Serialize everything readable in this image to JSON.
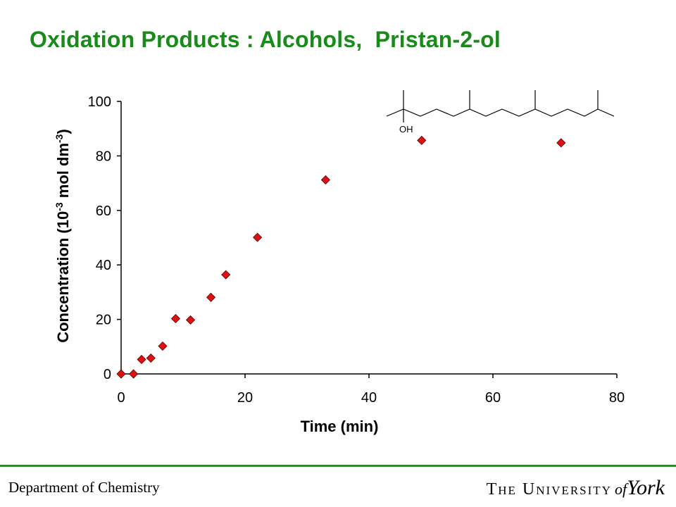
{
  "slide": {
    "title": "Oxidation Products : Alcohols,  Pristan-2-ol"
  },
  "chart_data": {
    "type": "scatter",
    "title": "",
    "xlabel": "Time (min)",
    "ylabel_prefix": "Concentration (10",
    "ylabel_exp1": "-3",
    "ylabel_mid": " mol dm",
    "ylabel_exp2": "-3",
    "ylabel_suffix": ")",
    "xlim": [
      0,
      80
    ],
    "ylim": [
      0,
      100
    ],
    "xticks": [
      0,
      20,
      40,
      60,
      80
    ],
    "yticks": [
      0,
      20,
      40,
      60,
      80,
      100
    ],
    "grid": false,
    "marker_color": "#dd1111",
    "series": [
      {
        "x": [
          0,
          2,
          3.3,
          4.8,
          6.7,
          8.8,
          11.2,
          14.5,
          16.9,
          22,
          33,
          48.5,
          71
        ],
        "y": [
          0,
          0,
          5.3,
          5.8,
          10.2,
          20.3,
          19.8,
          28.1,
          36.4,
          50.1,
          71.2,
          85.7,
          84.8
        ]
      }
    ],
    "annotation": {
      "structure_label": "OH"
    }
  },
  "footer": {
    "department": "Department of Chemistry",
    "logo_main": "The University",
    "logo_of": "of",
    "logo_york": "York",
    "rule_color": "#2e8b2e"
  }
}
